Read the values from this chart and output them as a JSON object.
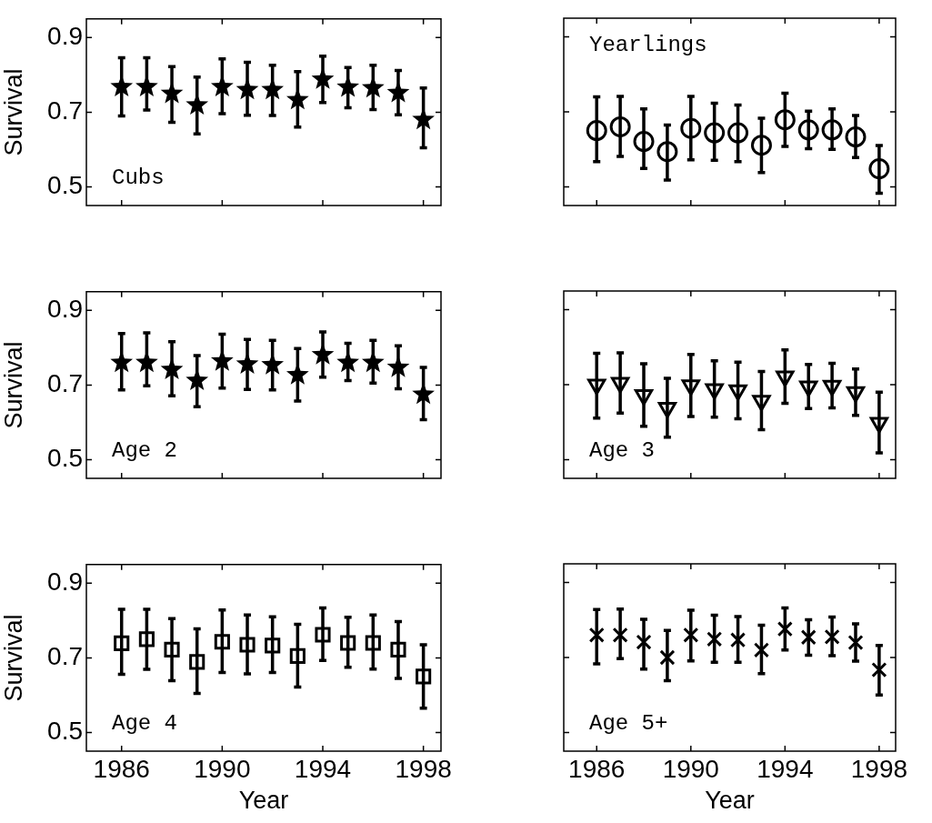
{
  "chart_data": [
    {
      "type": "scatter",
      "ylabel": "Survival",
      "annotations": [
        "Cubs"
      ],
      "x": [
        1986,
        1987,
        1988,
        1989,
        1990,
        1991,
        1992,
        1993,
        1994,
        1995,
        1996,
        1997,
        1998
      ],
      "xlim": [
        1984.6,
        1998.7
      ],
      "ylim": [
        0.45,
        0.95
      ],
      "xticks": [
        1986,
        1990,
        1994,
        1998
      ],
      "yticks": [
        0.5,
        0.7,
        0.9
      ],
      "tick_labels": "y",
      "grid": false,
      "legend": false,
      "marker": "star",
      "series": [
        {
          "color": "#000000",
          "values": [
            0.768,
            0.768,
            0.75,
            0.719,
            0.768,
            0.76,
            0.76,
            0.733,
            0.788,
            0.767,
            0.765,
            0.752,
            0.68
          ],
          "errors": [
            [
              0.69,
              0.846
            ],
            [
              0.706,
              0.846
            ],
            [
              0.673,
              0.822
            ],
            [
              0.642,
              0.794
            ],
            [
              0.696,
              0.843
            ],
            [
              0.692,
              0.834
            ],
            [
              0.691,
              0.826
            ],
            [
              0.66,
              0.809
            ],
            [
              0.726,
              0.85
            ],
            [
              0.712,
              0.82
            ],
            [
              0.707,
              0.826
            ],
            [
              0.693,
              0.812
            ],
            [
              0.605,
              0.765
            ]
          ]
        }
      ]
    },
    {
      "type": "scatter",
      "annotations": [
        "Yearlings"
      ],
      "x": [
        1986,
        1987,
        1988,
        1989,
        1990,
        1991,
        1992,
        1993,
        1994,
        1995,
        1996,
        1997,
        1998
      ],
      "xlim": [
        1984.6,
        1998.7
      ],
      "ylim": [
        0.45,
        0.95
      ],
      "xticks": [
        1986,
        1990,
        1994,
        1998
      ],
      "yticks": [
        0.5,
        0.7,
        0.9
      ],
      "tick_labels": false,
      "grid": false,
      "legend": false,
      "marker": "circle",
      "series": [
        {
          "color": "#000000",
          "values": [
            0.65,
            0.66,
            0.621,
            0.594,
            0.656,
            0.644,
            0.644,
            0.611,
            0.679,
            0.652,
            0.652,
            0.633,
            0.548
          ],
          "errors": [
            [
              0.567,
              0.74
            ],
            [
              0.581,
              0.741
            ],
            [
              0.549,
              0.708
            ],
            [
              0.518,
              0.665
            ],
            [
              0.572,
              0.741
            ],
            [
              0.571,
              0.723
            ],
            [
              0.567,
              0.718
            ],
            [
              0.538,
              0.683
            ],
            [
              0.608,
              0.75
            ],
            [
              0.602,
              0.702
            ],
            [
              0.6,
              0.708
            ],
            [
              0.578,
              0.69
            ],
            [
              0.483,
              0.61
            ]
          ]
        }
      ]
    },
    {
      "type": "scatter",
      "ylabel": "Survival",
      "annotations": [
        "Age 2"
      ],
      "x": [
        1986,
        1987,
        1988,
        1989,
        1990,
        1991,
        1992,
        1993,
        1994,
        1995,
        1996,
        1997,
        1998
      ],
      "xlim": [
        1984.6,
        1998.7
      ],
      "ylim": [
        0.45,
        0.95
      ],
      "xticks": [
        1986,
        1990,
        1994,
        1998
      ],
      "yticks": [
        0.5,
        0.7,
        0.9
      ],
      "tick_labels": "y",
      "grid": false,
      "legend": false,
      "marker": "star",
      "series": [
        {
          "color": "#000000",
          "values": [
            0.76,
            0.76,
            0.741,
            0.712,
            0.764,
            0.756,
            0.754,
            0.727,
            0.781,
            0.76,
            0.76,
            0.747,
            0.675
          ],
          "errors": [
            [
              0.687,
              0.838
            ],
            [
              0.698,
              0.84
            ],
            [
              0.671,
              0.816
            ],
            [
              0.642,
              0.779
            ],
            [
              0.692,
              0.836
            ],
            [
              0.688,
              0.822
            ],
            [
              0.687,
              0.82
            ],
            [
              0.657,
              0.798
            ],
            [
              0.721,
              0.842
            ],
            [
              0.712,
              0.812
            ],
            [
              0.705,
              0.82
            ],
            [
              0.69,
              0.805
            ],
            [
              0.607,
              0.747
            ]
          ]
        }
      ]
    },
    {
      "type": "scatter",
      "annotations": [
        "Age 3"
      ],
      "x": [
        1986,
        1987,
        1988,
        1989,
        1990,
        1991,
        1992,
        1993,
        1994,
        1995,
        1996,
        1997,
        1998
      ],
      "xlim": [
        1984.6,
        1998.7
      ],
      "ylim": [
        0.45,
        0.95
      ],
      "xticks": [
        1986,
        1990,
        1994,
        1998
      ],
      "yticks": [
        0.5,
        0.7,
        0.9
      ],
      "tick_labels": false,
      "grid": false,
      "legend": false,
      "marker": "triangle",
      "series": [
        {
          "color": "#000000",
          "values": [
            0.7,
            0.705,
            0.672,
            0.638,
            0.698,
            0.688,
            0.685,
            0.657,
            0.722,
            0.695,
            0.697,
            0.68,
            0.598
          ],
          "errors": [
            [
              0.611,
              0.784
            ],
            [
              0.624,
              0.785
            ],
            [
              0.589,
              0.756
            ],
            [
              0.56,
              0.717
            ],
            [
              0.615,
              0.781
            ],
            [
              0.613,
              0.764
            ],
            [
              0.609,
              0.76
            ],
            [
              0.58,
              0.735
            ],
            [
              0.65,
              0.793
            ],
            [
              0.636,
              0.754
            ],
            [
              0.638,
              0.757
            ],
            [
              0.618,
              0.742
            ],
            [
              0.518,
              0.68
            ]
          ]
        }
      ]
    },
    {
      "type": "scatter",
      "ylabel": "Survival",
      "xlabel": "Year",
      "annotations": [
        "Age 4"
      ],
      "x": [
        1986,
        1987,
        1988,
        1989,
        1990,
        1991,
        1992,
        1993,
        1994,
        1995,
        1996,
        1997,
        1998
      ],
      "xlim": [
        1984.6,
        1998.7
      ],
      "ylim": [
        0.45,
        0.95
      ],
      "xticks": [
        1986,
        1990,
        1994,
        1998
      ],
      "yticks": [
        0.5,
        0.7,
        0.9
      ],
      "grid": false,
      "legend": false,
      "marker": "square",
      "series": [
        {
          "color": "#000000",
          "values": [
            0.739,
            0.75,
            0.722,
            0.689,
            0.743,
            0.735,
            0.733,
            0.705,
            0.762,
            0.74,
            0.74,
            0.722,
            0.65
          ],
          "errors": [
            [
              0.656,
              0.83
            ],
            [
              0.669,
              0.83
            ],
            [
              0.639,
              0.805
            ],
            [
              0.605,
              0.778
            ],
            [
              0.661,
              0.828
            ],
            [
              0.657,
              0.815
            ],
            [
              0.661,
              0.81
            ],
            [
              0.622,
              0.79
            ],
            [
              0.693,
              0.834
            ],
            [
              0.675,
              0.809
            ],
            [
              0.67,
              0.815
            ],
            [
              0.645,
              0.797
            ],
            [
              0.565,
              0.735
            ]
          ]
        }
      ]
    },
    {
      "type": "scatter",
      "xlabel": "Year",
      "annotations": [
        "Age 5+"
      ],
      "x": [
        1986,
        1987,
        1988,
        1989,
        1990,
        1991,
        1992,
        1993,
        1994,
        1995,
        1996,
        1997,
        1998
      ],
      "xlim": [
        1984.6,
        1998.7
      ],
      "ylim": [
        0.45,
        0.95
      ],
      "xticks": [
        1986,
        1990,
        1994,
        1998
      ],
      "yticks": [
        0.5,
        0.7,
        0.9
      ],
      "tick_labels": "x",
      "grid": false,
      "legend": false,
      "marker": "cross",
      "series": [
        {
          "color": "#000000",
          "values": [
            0.76,
            0.76,
            0.741,
            0.7,
            0.76,
            0.749,
            0.747,
            0.72,
            0.776,
            0.754,
            0.755,
            0.74,
            0.667
          ],
          "errors": [
            [
              0.683,
              0.828
            ],
            [
              0.697,
              0.829
            ],
            [
              0.669,
              0.802
            ],
            [
              0.638,
              0.772
            ],
            [
              0.691,
              0.826
            ],
            [
              0.687,
              0.813
            ],
            [
              0.687,
              0.809
            ],
            [
              0.657,
              0.786
            ],
            [
              0.72,
              0.832
            ],
            [
              0.706,
              0.801
            ],
            [
              0.705,
              0.808
            ],
            [
              0.69,
              0.79
            ],
            [
              0.6,
              0.732
            ]
          ]
        }
      ]
    }
  ]
}
